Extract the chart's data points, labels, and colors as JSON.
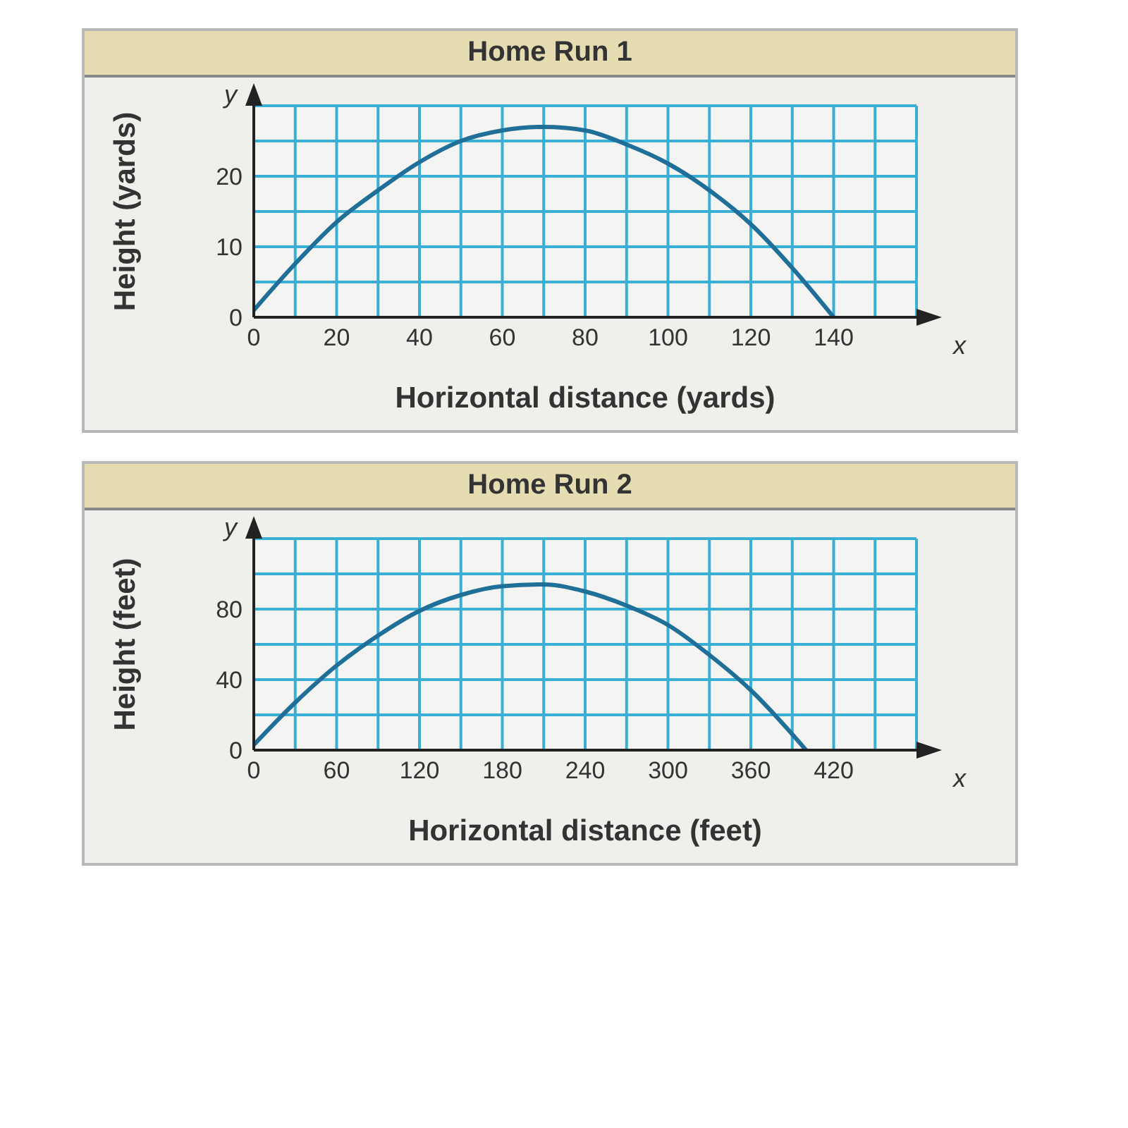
{
  "chart_data": [
    {
      "type": "line",
      "title": "Home Run 1",
      "xlabel": "Horizontal distance (yards)",
      "ylabel": "Height (yards)",
      "annotations": [
        "x",
        "y"
      ],
      "x": [
        0,
        10,
        20,
        30,
        40,
        50,
        60,
        70,
        80,
        90,
        100,
        110,
        120,
        130,
        140
      ],
      "series": [
        {
          "color": "#1f6f98",
          "values": [
            1,
            7.6,
            13.5,
            18,
            22,
            25,
            26.5,
            27,
            26.5,
            24.5,
            21.8,
            18,
            13.2,
            7,
            0
          ]
        }
      ],
      "xlim": [
        0,
        160
      ],
      "xticks": [
        0,
        {
          "value": 10,
          "label": null
        },
        20,
        {
          "value": 30,
          "label": null
        },
        40,
        {
          "value": 50,
          "label": null
        },
        60,
        {
          "value": 70,
          "label": null
        },
        80,
        {
          "value": 90,
          "label": null
        },
        100,
        {
          "value": 110,
          "label": null
        },
        120,
        {
          "value": 130,
          "label": null
        },
        140,
        {
          "value": 150,
          "label": null
        },
        {
          "value": 160,
          "label": null
        }
      ],
      "ylim": [
        0,
        30
      ],
      "yticks": [
        0,
        {
          "value": 5,
          "label": null
        },
        10,
        {
          "value": 15,
          "label": null
        },
        20,
        {
          "value": 25,
          "label": null
        },
        {
          "value": 30,
          "label": null
        }
      ],
      "grid": true,
      "marker": "none",
      "line_style": "solid",
      "legend": false
    },
    {
      "type": "line",
      "title": "Home Run 2",
      "xlabel": "Horizontal distance (feet)",
      "ylabel": "Height (feet)",
      "annotations": [
        "x",
        "y"
      ],
      "x": [
        0,
        30,
        60,
        90,
        120,
        150,
        180,
        210,
        240,
        270,
        300,
        330,
        360,
        390,
        400
      ],
      "series": [
        {
          "color": "#1f6f98",
          "values": [
            3,
            27,
            48,
            65,
            79,
            88,
            93,
            94,
            90,
            82,
            71,
            54,
            34,
            9,
            0
          ]
        }
      ],
      "xlim": [
        0,
        480
      ],
      "xticks": [
        0,
        {
          "value": 30,
          "label": null
        },
        60,
        {
          "value": 90,
          "label": null
        },
        120,
        {
          "value": 150,
          "label": null
        },
        180,
        {
          "value": 210,
          "label": null
        },
        240,
        {
          "value": 270,
          "label": null
        },
        300,
        {
          "value": 330,
          "label": null
        },
        360,
        {
          "value": 390,
          "label": null
        },
        420,
        {
          "value": 450,
          "label": null
        },
        {
          "value": 480,
          "label": null
        }
      ],
      "ylim": [
        0,
        120
      ],
      "yticks": [
        0,
        {
          "value": 20,
          "label": null
        },
        40,
        {
          "value": 60,
          "label": null
        },
        80,
        {
          "value": 100,
          "label": null
        },
        {
          "value": 120,
          "label": null
        }
      ],
      "grid": true,
      "marker": "none",
      "line_style": "solid",
      "legend": false
    }
  ]
}
